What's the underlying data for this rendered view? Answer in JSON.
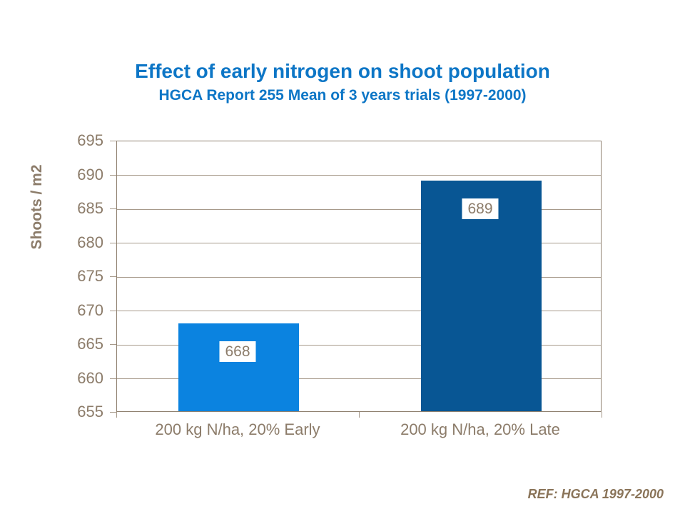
{
  "slide": {
    "title": "Effect of early nitrogen on shoot population",
    "subtitle": "HGCA Report 255 Mean of 3 years trials (1997-2000)",
    "reference": "REF: HGCA 1997-2000"
  },
  "colors": {
    "title_blue": "#0d76c6",
    "axis_text": "#8c7c6a",
    "gridline": "#a79a8b",
    "bar_early": "#0b83e0",
    "bar_late": "#085694",
    "background": "#ffffff",
    "reference_text": "#8a7459"
  },
  "chart_data": {
    "type": "bar",
    "title": "Effect of early nitrogen on shoot population",
    "subtitle": "HGCA Report 255 Mean of 3 years trials (1997-2000)",
    "categories": [
      "200 kg N/ha, 20% Early",
      "200 kg N/ha, 20% Late"
    ],
    "values": [
      668,
      689
    ],
    "data_labels": [
      "668",
      "689"
    ],
    "bar_colors": [
      "#0b83e0",
      "#085694"
    ],
    "xlabel": "",
    "ylabel": "Shoots / m2",
    "ylim": [
      655,
      695
    ],
    "ytick_step": 5,
    "ytick_labels": [
      "695",
      "690",
      "685",
      "680",
      "675",
      "670",
      "665",
      "660",
      "655"
    ],
    "grid": "horizontal",
    "legend_position": "none",
    "annotation": "REF: HGCA 1997-2000"
  }
}
